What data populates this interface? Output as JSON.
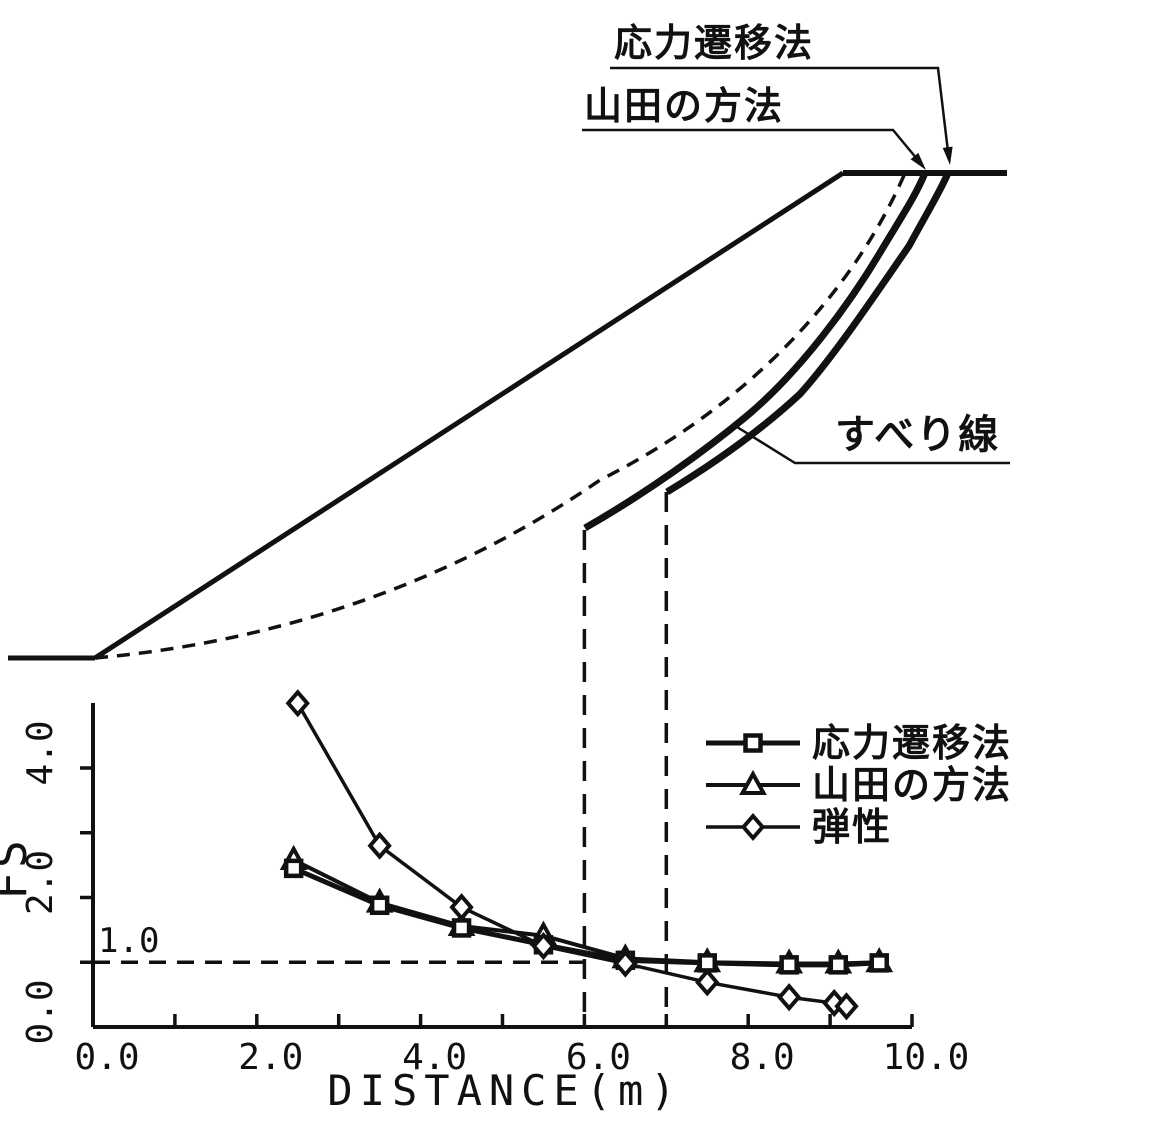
{
  "figure": {
    "diagram": {
      "label_stress_transfer": "応力遷移法",
      "label_yamada": "山田の方法",
      "label_slip_line": "すべり線"
    },
    "chart_data": {
      "type": "line",
      "title": "",
      "xlabel": "DISTANCE(m)",
      "ylabel": "FS",
      "xlim": [
        0.0,
        10.0
      ],
      "ylim": [
        0.0,
        5.0
      ],
      "grid": false,
      "legend_position": "upper right",
      "x_ticks": [
        1,
        2,
        3,
        4,
        5,
        6,
        7,
        8,
        9,
        10
      ],
      "x_tick_labels": [
        {
          "value": 0,
          "text": "0.0"
        },
        {
          "value": 2,
          "text": "2.0"
        },
        {
          "value": 4,
          "text": "4.0"
        },
        {
          "value": 6,
          "text": "6.0"
        },
        {
          "value": 8,
          "text": "8.0"
        },
        {
          "value": 10,
          "text": "10.0"
        }
      ],
      "y_ticks": [
        1,
        2,
        3,
        4
      ],
      "y_tick_labels": [
        {
          "value": 0,
          "text": "0.0"
        },
        {
          "value": 2,
          "text": "2.0"
        },
        {
          "value": 4,
          "text": "4.0"
        }
      ],
      "reference_line": {
        "label": "1.0",
        "value": 1.0,
        "x_start": 0.0,
        "x_end": 6.0
      },
      "vertical_dashed_lines_x": [
        6.0,
        7.0
      ],
      "series": [
        {
          "name": "応力遷移法",
          "marker": "square",
          "x": [
            2.45,
            3.5,
            4.5,
            5.5,
            6.5,
            7.5,
            8.5,
            9.1,
            9.6
          ],
          "fs": [
            2.45,
            1.88,
            1.53,
            1.27,
            1.03,
            0.99,
            0.96,
            0.96,
            0.99
          ]
        },
        {
          "name": "山田の方法",
          "marker": "triangle",
          "x": [
            2.45,
            3.5,
            4.5,
            5.5,
            6.5,
            7.5,
            8.5,
            9.1,
            9.6
          ],
          "fs": [
            2.58,
            1.92,
            1.56,
            1.41,
            1.06,
            1.0,
            0.98,
            0.98,
            1.0
          ]
        },
        {
          "name": "弾性",
          "marker": "diamond",
          "x": [
            2.5,
            3.5,
            4.5,
            5.5,
            6.5,
            7.5,
            8.5,
            9.05,
            9.2
          ],
          "fs": [
            5.0,
            2.8,
            1.85,
            1.25,
            0.98,
            0.69,
            0.46,
            0.37,
            0.32
          ]
        }
      ]
    }
  }
}
